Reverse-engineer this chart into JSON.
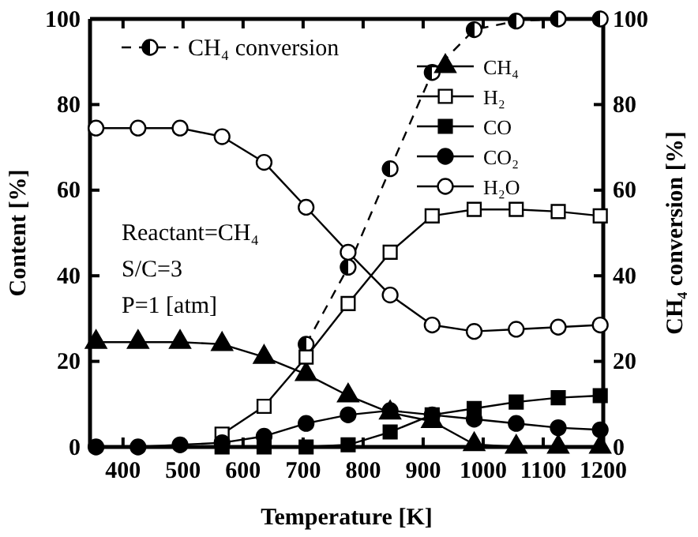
{
  "chart_data": {
    "type": "line",
    "xlabel": "Temperature [K]",
    "ylabel": "Content [%]",
    "y2label": "CH₄ conversion [%]",
    "x": [
      355,
      425,
      495,
      565,
      635,
      705,
      775,
      845,
      915,
      985,
      1055,
      1125,
      1195
    ],
    "xlim": [
      345,
      1200
    ],
    "xticks": [
      400,
      500,
      600,
      700,
      800,
      900,
      1000,
      1100,
      1200
    ],
    "ylim": [
      0,
      100
    ],
    "yticks": [
      0,
      20,
      40,
      60,
      80,
      100
    ],
    "y2lim": [
      0,
      100
    ],
    "y2ticks": [
      0,
      20,
      40,
      60,
      80,
      100
    ],
    "legend": "top",
    "series": [
      {
        "name": "CH₄ conversion",
        "color": "#000000",
        "axis": "y2",
        "marker": "circle",
        "line_style": "dashed",
        "values": [
          null,
          null,
          null,
          null,
          null,
          24,
          42,
          65,
          87.5,
          97.5,
          99.5,
          100,
          100
        ]
      },
      {
        "name": "CH₄",
        "color": "#000000",
        "marker": "triangle",
        "line_style": "solid",
        "values": [
          24.5,
          24.5,
          24.5,
          24,
          21,
          17,
          12,
          8,
          6,
          0.6,
          0,
          0,
          0
        ]
      },
      {
        "name": "H₂",
        "color": "#000000",
        "marker": "square",
        "line_style": "solid",
        "values": [
          null,
          null,
          null,
          3,
          9.5,
          21,
          33.5,
          45.5,
          54,
          55.5,
          55.5,
          55,
          54
        ]
      },
      {
        "name": "CO",
        "color": "#000000",
        "marker": "square",
        "line_style": "solid",
        "values": [
          null,
          null,
          null,
          0,
          0,
          0,
          0.5,
          3.5,
          7.5,
          9,
          10.5,
          11.5,
          12
        ]
      },
      {
        "name": "CO₂",
        "color": "#000000",
        "marker": "circle",
        "line_style": "solid",
        "values": [
          0,
          0,
          0.5,
          1,
          2.5,
          5.5,
          7.5,
          8.5,
          7.5,
          6.5,
          5.5,
          4.5,
          4
        ]
      },
      {
        "name": "H₂O",
        "color": "#000000",
        "marker": "circle",
        "line_style": "solid",
        "values": [
          74.5,
          74.5,
          74.5,
          72.5,
          66.5,
          56,
          45.5,
          35.5,
          28.5,
          27,
          27.5,
          28,
          28.5
        ]
      }
    ],
    "annotations": [
      "Reactant=CH₄",
      "S/C=3",
      "P=1 [atm]"
    ]
  }
}
